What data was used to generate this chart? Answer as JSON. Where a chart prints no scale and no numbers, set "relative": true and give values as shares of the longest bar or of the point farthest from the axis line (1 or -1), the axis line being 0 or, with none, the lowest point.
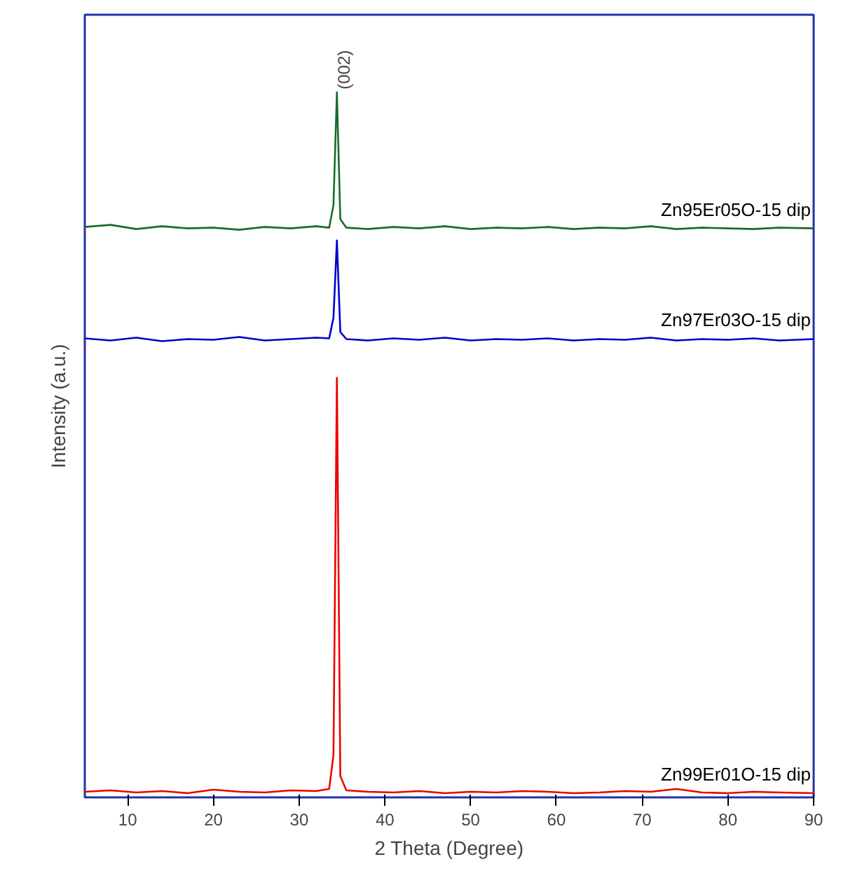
{
  "chart_data": {
    "type": "line",
    "relative": true,
    "xlabel": "2 Theta (Degree)",
    "ylabel": "Intensity (a.u.)",
    "x": [
      5,
      8,
      11,
      14,
      17,
      20,
      23,
      26,
      29,
      32,
      33.5,
      34.0,
      34.4,
      34.8,
      35.5,
      38,
      41,
      44,
      47,
      50,
      53,
      56,
      59,
      62,
      65,
      68,
      71,
      74,
      77,
      80,
      83,
      86,
      90
    ],
    "xlim": [
      5,
      90
    ],
    "xticks": [
      10,
      20,
      30,
      40,
      50,
      60,
      70,
      80,
      90
    ],
    "tick_labels": "x",
    "grid": false,
    "marker": "none",
    "line_style": "solid",
    "series": [
      {
        "name": "Zn95Er05O-15 dip",
        "color": "#1a6b2a",
        "values": [
          0.809,
          0.812,
          0.806,
          0.81,
          0.807,
          0.808,
          0.805,
          0.809,
          0.807,
          0.81,
          0.808,
          0.84,
          1.0,
          0.82,
          0.808,
          0.806,
          0.809,
          0.807,
          0.81,
          0.806,
          0.808,
          0.807,
          0.809,
          0.806,
          0.808,
          0.807,
          0.81,
          0.806,
          0.808,
          0.807,
          0.806,
          0.808,
          0.807
        ]
      },
      {
        "name": "Zn97Er03O-15 dip",
        "color": "#0000cc",
        "values": [
          0.651,
          0.648,
          0.652,
          0.647,
          0.65,
          0.649,
          0.653,
          0.648,
          0.65,
          0.652,
          0.651,
          0.68,
          0.79,
          0.66,
          0.65,
          0.648,
          0.651,
          0.649,
          0.652,
          0.648,
          0.65,
          0.649,
          0.651,
          0.648,
          0.65,
          0.649,
          0.652,
          0.648,
          0.65,
          0.649,
          0.651,
          0.648,
          0.65
        ]
      },
      {
        "name": "Zn99Er01O-15 dip",
        "color": "#ee0000",
        "values": [
          0.008,
          0.01,
          0.007,
          0.009,
          0.006,
          0.011,
          0.008,
          0.007,
          0.01,
          0.009,
          0.012,
          0.06,
          0.595,
          0.03,
          0.01,
          0.008,
          0.007,
          0.009,
          0.006,
          0.008,
          0.007,
          0.009,
          0.008,
          0.006,
          0.007,
          0.009,
          0.008,
          0.012,
          0.007,
          0.006,
          0.008,
          0.007,
          0.006
        ]
      }
    ],
    "annotations": [
      {
        "text": "(002)",
        "x": 34.4,
        "y": 1.0
      }
    ]
  }
}
